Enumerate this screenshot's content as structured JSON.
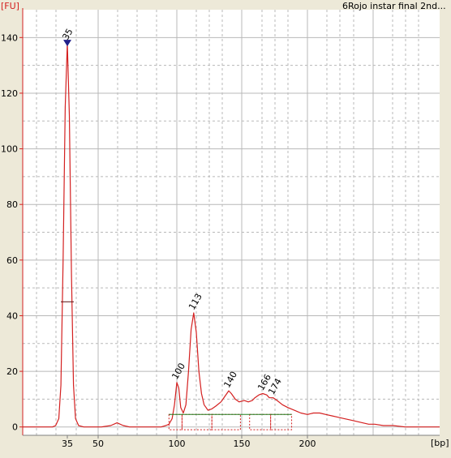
{
  "chart_data": {
    "type": "line",
    "title": "6Rojo instar final 2nd...",
    "y_unit": "[FU]",
    "x_unit": "[bp]",
    "x_ticks": [
      35,
      50,
      100,
      150,
      200
    ],
    "y_ticks": [
      0,
      20,
      40,
      60,
      80,
      100,
      120,
      140
    ],
    "ylim": [
      -3,
      150
    ],
    "grid": true,
    "colors": {
      "background": "#ffffff",
      "trace": "#d42020",
      "axis": "#d42020",
      "grid": "#b8b8b8",
      "marker": "#20208a",
      "ladder_label": "#208020",
      "baseline": "#208020"
    },
    "series": [
      {
        "x": [
          14,
          20,
          25,
          28,
          29.5,
          31,
          32,
          33,
          34,
          35,
          36,
          37,
          38,
          39,
          40.5,
          43,
          47,
          52,
          58,
          62,
          66,
          70,
          75,
          80,
          85,
          90,
          93,
          95,
          97,
          98.5,
          100,
          101.5,
          103,
          105,
          107,
          109,
          111,
          113,
          115,
          117,
          119,
          121,
          124,
          127,
          130,
          134,
          137,
          140,
          142,
          145,
          148,
          152,
          155,
          158,
          160,
          163,
          166,
          169,
          171,
          174,
          177,
          181,
          185,
          190,
          195,
          200,
          205,
          210,
          215,
          220,
          225,
          230,
          235,
          240,
          245,
          250,
          255,
          262,
          270,
          280,
          290,
          300,
          308
        ],
        "y": [
          0,
          0,
          0,
          0,
          0.5,
          3,
          15,
          60,
          115,
          138,
          112,
          55,
          15,
          3,
          0.5,
          0,
          0,
          0,
          0.5,
          1.5,
          0.5,
          0,
          0,
          0,
          0,
          0,
          0.5,
          1,
          3,
          8,
          16,
          14,
          7,
          5,
          8,
          20,
          35,
          41,
          34,
          20,
          12,
          8,
          6,
          6.5,
          7.5,
          9,
          11,
          13,
          12,
          10,
          9,
          9.5,
          9,
          9.5,
          10.5,
          11.5,
          12,
          11.5,
          10.5,
          10.5,
          9.5,
          8,
          7,
          6,
          5,
          4.5,
          5,
          5,
          4.5,
          4,
          3.5,
          3,
          2.5,
          2,
          1.5,
          1,
          1,
          0.5,
          0.5,
          0,
          0,
          0,
          0
        ]
      }
    ],
    "peak_labels": [
      {
        "label": "35",
        "x": 35,
        "y": 138
      },
      {
        "label": "100",
        "x": 100,
        "y": 16
      },
      {
        "label": "113",
        "x": 113,
        "y": 41
      },
      {
        "label": "140",
        "x": 140,
        "y": 13
      },
      {
        "label": "166",
        "x": 166,
        "y": 12
      },
      {
        "label": "174",
        "x": 174,
        "y": 10.5
      }
    ],
    "ladder_marker": {
      "x": 35,
      "y": 138
    },
    "marker_tick": {
      "x": 35,
      "y": 45
    },
    "baseline_segment": {
      "x_start": 95,
      "x_end": 188,
      "y": 4.5
    },
    "integration_regions": [
      {
        "x_start": 95,
        "x_end": 104
      },
      {
        "x_start": 104,
        "x_end": 127
      },
      {
        "x_start": 127,
        "x_end": 149
      },
      {
        "x_start": 156,
        "x_end": 172
      },
      {
        "x_start": 172,
        "x_end": 188
      }
    ]
  }
}
